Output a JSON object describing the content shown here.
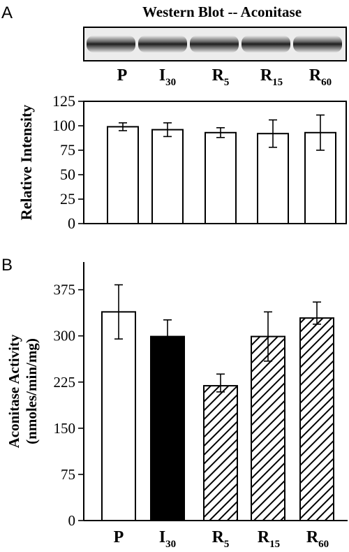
{
  "panel_a": {
    "letter": "A",
    "blot_title": "Western Blot -- Aconitase",
    "lane_labels": [
      {
        "main": "P",
        "sub": ""
      },
      {
        "main": "I",
        "sub": "30"
      },
      {
        "main": "R",
        "sub": "5"
      },
      {
        "main": "R",
        "sub": "15"
      },
      {
        "main": "R",
        "sub": "60"
      }
    ]
  },
  "panel_b": {
    "letter": "B"
  },
  "chart_data": [
    {
      "type": "bar",
      "panel": "A",
      "categories": [
        "P",
        "I30",
        "R5",
        "R15",
        "R60"
      ],
      "values": [
        99,
        96,
        93,
        92,
        93
      ],
      "error_upper": [
        4,
        7,
        5,
        14,
        18
      ],
      "error_lower": [
        4,
        7,
        5,
        14,
        18
      ],
      "ylabel": "Relative Intensity",
      "ylim": [
        0,
        125
      ],
      "yticks": [
        0,
        25,
        50,
        75,
        100,
        125
      ],
      "bar_fills": [
        "white",
        "white",
        "white",
        "white",
        "white"
      ],
      "grid": false
    },
    {
      "type": "bar",
      "panel": "B",
      "categories": [
        "P",
        "I30",
        "R5",
        "R15",
        "R60"
      ],
      "values": [
        339,
        299,
        219,
        299,
        329
      ],
      "error_upper": [
        44,
        27,
        19,
        40,
        26
      ],
      "error_lower": [
        44,
        0,
        10,
        40,
        10
      ],
      "ylabel_lines": [
        "Aconitase Activity",
        "(nmoles/min/mg)"
      ],
      "ylim": [
        0,
        420
      ],
      "yticks": [
        0,
        75,
        150,
        225,
        300,
        375
      ],
      "bar_fills": [
        "white",
        "black",
        "hatch",
        "hatch",
        "hatch"
      ],
      "grid": false
    }
  ]
}
